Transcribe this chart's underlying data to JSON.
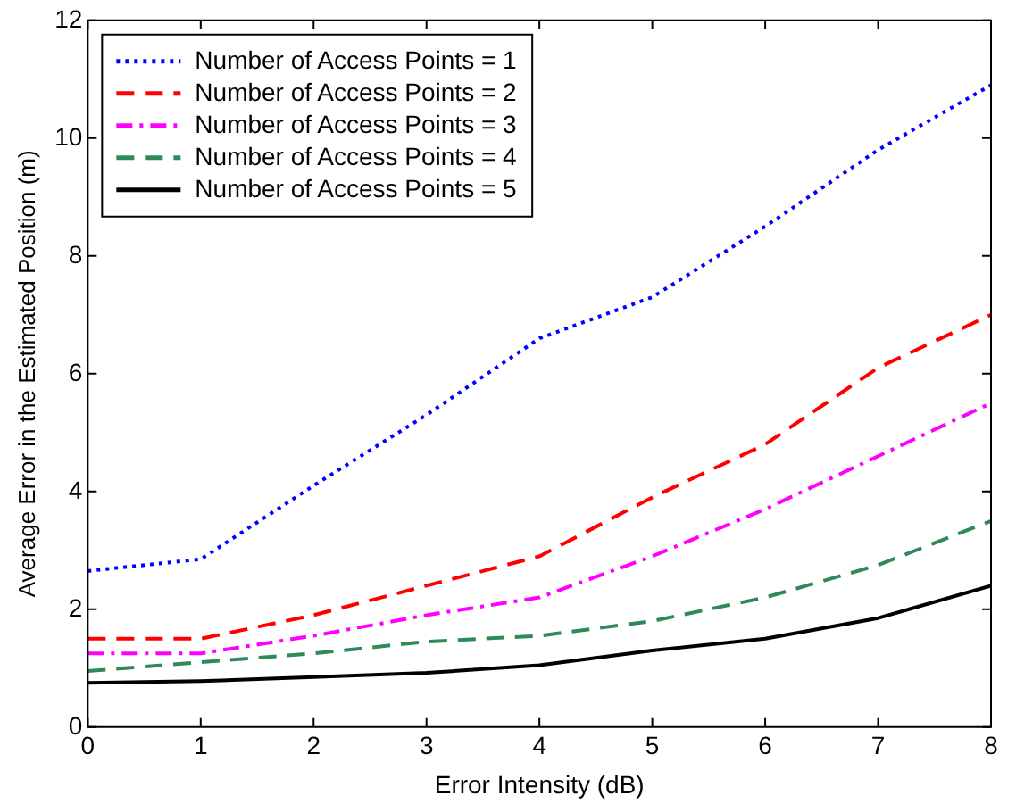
{
  "chart_data": {
    "type": "line",
    "xlabel": "Error Intensity (dB)",
    "ylabel": "Average Error in the Estimated Position (m)",
    "x": [
      0,
      1,
      2,
      3,
      4,
      5,
      6,
      7,
      8
    ],
    "xlim": [
      0,
      8
    ],
    "xticks": [
      0,
      1,
      2,
      3,
      4,
      5,
      6,
      7,
      8
    ],
    "ylim": [
      0,
      12
    ],
    "yticks": [
      0,
      2,
      4,
      6,
      8,
      10,
      12
    ],
    "grid": false,
    "legend": "top left",
    "marker": "none",
    "series": [
      {
        "name": "Number of Access Points = 1",
        "color": "#0000ff",
        "line_style": "dotted",
        "values": [
          2.65,
          2.85,
          4.1,
          5.3,
          6.6,
          7.3,
          8.5,
          9.8,
          10.9
        ]
      },
      {
        "name": "Number of Access Points = 2",
        "color": "#ff0000",
        "line_style": "dashed",
        "values": [
          1.5,
          1.5,
          1.9,
          2.4,
          2.9,
          3.9,
          4.8,
          6.1,
          7.0
        ]
      },
      {
        "name": "Number of Access Points = 3",
        "color": "#ff00ff",
        "line_style": "dashdot",
        "values": [
          1.25,
          1.25,
          1.55,
          1.9,
          2.2,
          2.9,
          3.7,
          4.6,
          5.5
        ]
      },
      {
        "name": "Number of Access Points = 4",
        "color": "#2e8b57",
        "line_style": "dashed",
        "values": [
          0.95,
          1.1,
          1.25,
          1.45,
          1.55,
          1.8,
          2.2,
          2.75,
          3.5
        ]
      },
      {
        "name": "Number of Access Points = 5",
        "color": "#000000",
        "line_style": "solid",
        "values": [
          0.75,
          0.78,
          0.85,
          0.92,
          1.05,
          1.3,
          1.5,
          1.85,
          2.4
        ]
      }
    ]
  }
}
